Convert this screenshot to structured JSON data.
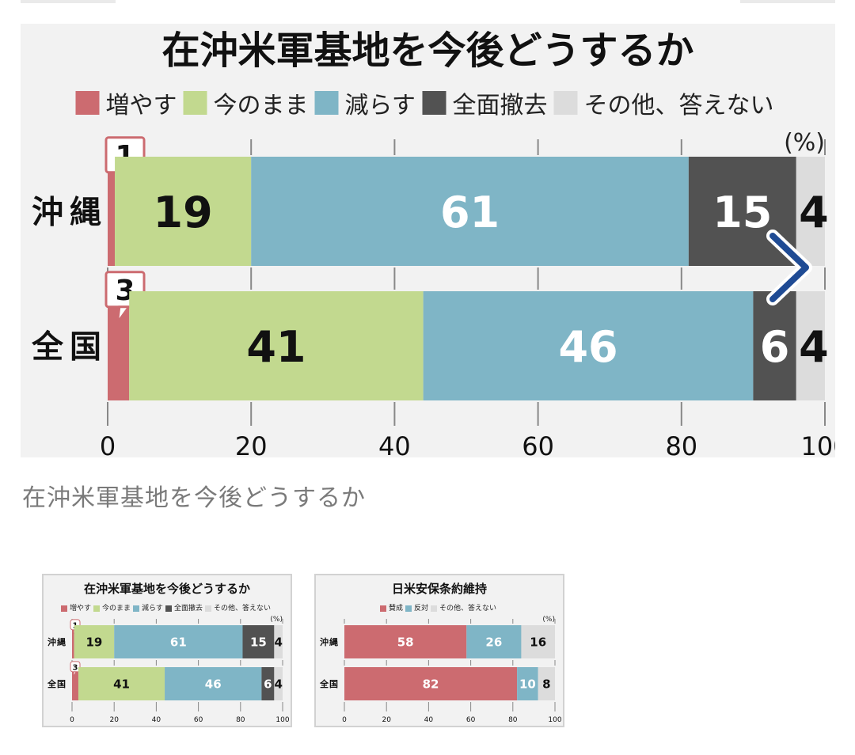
{
  "colors": {
    "increase": "#cc6b70",
    "same": "#c2d98f",
    "reduce": "#7fb5c6",
    "withdraw": "#525252",
    "other": "#dcdcdc",
    "chart_bg": "#f2f2f2",
    "nav_arrow": "#1f4b94"
  },
  "main": {
    "caption": "在沖米軍基地を今後どうするか",
    "next_icon": "chevron-right-icon"
  },
  "chart_data": [
    {
      "type": "bar",
      "orientation": "horizontal-stacked",
      "title": "在沖米軍基地を今後どうするか",
      "unit": "(%)",
      "categories": [
        "沖縄",
        "全国"
      ],
      "series": [
        {
          "name": "増やす",
          "values": [
            1,
            3
          ],
          "color": "#cc6b70"
        },
        {
          "name": "今のまま",
          "values": [
            19,
            41
          ],
          "color": "#c2d98f"
        },
        {
          "name": "減らす",
          "values": [
            61,
            46
          ],
          "color": "#7fb5c6"
        },
        {
          "name": "全面撤去",
          "values": [
            15,
            6
          ],
          "color": "#525252"
        },
        {
          "name": "その他、答えない",
          "values": [
            4,
            4
          ],
          "color": "#dcdcdc"
        }
      ],
      "xlim": [
        0,
        100
      ],
      "xticks": [
        "0",
        "20",
        "40",
        "60",
        "80",
        "100"
      ],
      "legend": "top",
      "grid": false
    },
    {
      "type": "bar",
      "orientation": "horizontal-stacked",
      "title": "日米安保条約維持",
      "unit": "(%)",
      "categories": [
        "沖縄",
        "全国"
      ],
      "series": [
        {
          "name": "賛成",
          "values": [
            58,
            82
          ],
          "color": "#cc6b70"
        },
        {
          "name": "反対",
          "values": [
            26,
            10
          ],
          "color": "#7fb5c6"
        },
        {
          "name": "その他、答えない",
          "values": [
            16,
            8
          ],
          "color": "#dcdcdc"
        }
      ],
      "xlim": [
        0,
        100
      ],
      "xticks": [
        "0",
        "20",
        "40",
        "60",
        "80",
        "100"
      ],
      "legend": "top",
      "grid": false
    }
  ]
}
